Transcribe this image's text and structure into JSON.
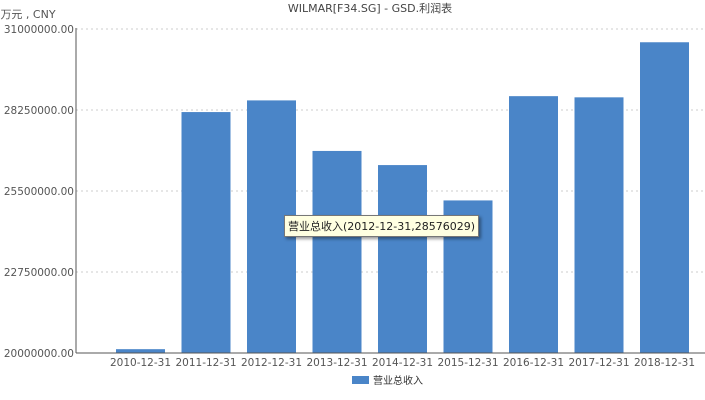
{
  "chart_data": {
    "type": "bar",
    "title": "WILMAR[F34.SG] - GSD.利润表",
    "unit_label": "万元 , CNY",
    "xlabel": "",
    "ylabel": "",
    "categories": [
      "2010-12-31",
      "2011-12-31",
      "2012-12-31",
      "2013-12-31",
      "2014-12-31",
      "2015-12-31",
      "2016-12-31",
      "2017-12-31",
      "2018-12-31"
    ],
    "series": [
      {
        "name": "营业总收入",
        "color": "#4a85c8",
        "values": [
          20130000,
          28180000,
          28576029,
          26860000,
          26380000,
          25180000,
          28720000,
          28680000,
          30550000
        ]
      }
    ],
    "ylim": [
      20000000,
      31000000
    ],
    "yticks": [
      "20000000.00",
      "22750000.00",
      "25500000.00",
      "28250000.00",
      "31000000.00"
    ],
    "grid": true,
    "legend": "bottom",
    "tooltip": "营业总收入(2012-12-31,28576029)"
  }
}
